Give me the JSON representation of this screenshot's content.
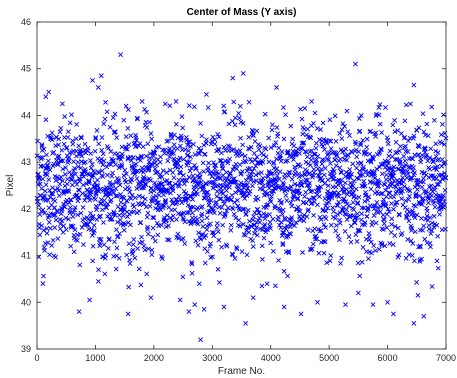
{
  "chart_data": {
    "type": "scatter",
    "title": "Center of Mass (Y axis)",
    "xlabel": "Frame No.",
    "ylabel": "Pixel",
    "xlim": [
      0,
      7000
    ],
    "ylim": [
      39,
      46
    ],
    "xticks": [
      "0",
      "1000",
      "2000",
      "3000",
      "4000",
      "5000",
      "6000",
      "7000"
    ],
    "yticks": [
      "39",
      "40",
      "41",
      "42",
      "43",
      "44",
      "45",
      "46"
    ],
    "marker": "x",
    "grid": false,
    "color": "#0000ff",
    "series": [
      {
        "description_of_distribution": "",
        "n_points": 7000,
        "dense_band": [
          41.2,
          43.6
        ],
        "outliers": [
          [
            1430,
            45.3
          ],
          [
            5450,
            45.1
          ],
          [
            3530,
            44.9
          ],
          [
            1100,
            44.85
          ],
          [
            6450,
            44.65
          ],
          [
            950,
            44.75
          ],
          [
            2380,
            44.3
          ],
          [
            3350,
            44.8
          ],
          [
            4700,
            44.3
          ],
          [
            2900,
            44.45
          ],
          [
            1800,
            44.3
          ],
          [
            200,
            44.5
          ],
          [
            1050,
            44.6
          ],
          [
            150,
            44.4
          ],
          [
            4100,
            44.6
          ],
          [
            1560,
            39.75
          ],
          [
            2800,
            39.2
          ],
          [
            3570,
            39.55
          ],
          [
            6450,
            39.55
          ],
          [
            2860,
            39.85
          ],
          [
            2700,
            39.95
          ],
          [
            3200,
            39.9
          ],
          [
            2450,
            40.05
          ],
          [
            2600,
            39.8
          ],
          [
            6100,
            39.75
          ],
          [
            4520,
            39.75
          ],
          [
            5750,
            39.95
          ],
          [
            6620,
            39.7
          ],
          [
            6520,
            40.15
          ],
          [
            6000,
            40.0
          ],
          [
            100,
            40.4
          ],
          [
            720,
            39.8
          ],
          [
            3700,
            40.1
          ],
          [
            4230,
            39.9
          ],
          [
            5500,
            40.2
          ],
          [
            900,
            40.05
          ],
          [
            3850,
            40.35
          ],
          [
            4800,
            40.0
          ],
          [
            1950,
            40.1
          ],
          [
            5280,
            39.95
          ]
        ]
      }
    ]
  }
}
